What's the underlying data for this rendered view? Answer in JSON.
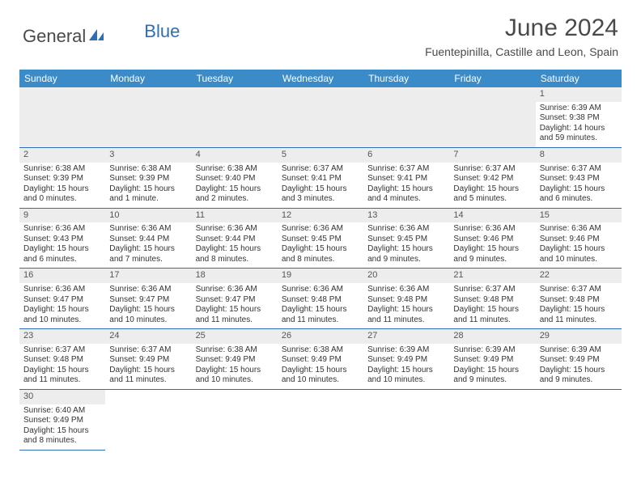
{
  "logo": {
    "general": "General",
    "blue": "Blue"
  },
  "title": "June 2024",
  "location": "Fuentepinilla, Castille and Leon, Spain",
  "colors": {
    "header_bg": "#3b8bc9",
    "accent": "#2d6fb5",
    "stripe": "#ededed",
    "text": "#333333"
  },
  "day_headers": [
    "Sunday",
    "Monday",
    "Tuesday",
    "Wednesday",
    "Thursday",
    "Friday",
    "Saturday"
  ],
  "weeks": [
    [
      null,
      null,
      null,
      null,
      null,
      null,
      {
        "n": "1",
        "sr": "Sunrise: 6:39 AM",
        "ss": "Sunset: 9:38 PM",
        "d1": "Daylight: 14 hours",
        "d2": "and 59 minutes."
      }
    ],
    [
      {
        "n": "2",
        "sr": "Sunrise: 6:38 AM",
        "ss": "Sunset: 9:39 PM",
        "d1": "Daylight: 15 hours",
        "d2": "and 0 minutes."
      },
      {
        "n": "3",
        "sr": "Sunrise: 6:38 AM",
        "ss": "Sunset: 9:39 PM",
        "d1": "Daylight: 15 hours",
        "d2": "and 1 minute."
      },
      {
        "n": "4",
        "sr": "Sunrise: 6:38 AM",
        "ss": "Sunset: 9:40 PM",
        "d1": "Daylight: 15 hours",
        "d2": "and 2 minutes."
      },
      {
        "n": "5",
        "sr": "Sunrise: 6:37 AM",
        "ss": "Sunset: 9:41 PM",
        "d1": "Daylight: 15 hours",
        "d2": "and 3 minutes."
      },
      {
        "n": "6",
        "sr": "Sunrise: 6:37 AM",
        "ss": "Sunset: 9:41 PM",
        "d1": "Daylight: 15 hours",
        "d2": "and 4 minutes."
      },
      {
        "n": "7",
        "sr": "Sunrise: 6:37 AM",
        "ss": "Sunset: 9:42 PM",
        "d1": "Daylight: 15 hours",
        "d2": "and 5 minutes."
      },
      {
        "n": "8",
        "sr": "Sunrise: 6:37 AM",
        "ss": "Sunset: 9:43 PM",
        "d1": "Daylight: 15 hours",
        "d2": "and 6 minutes."
      }
    ],
    [
      {
        "n": "9",
        "sr": "Sunrise: 6:36 AM",
        "ss": "Sunset: 9:43 PM",
        "d1": "Daylight: 15 hours",
        "d2": "and 6 minutes."
      },
      {
        "n": "10",
        "sr": "Sunrise: 6:36 AM",
        "ss": "Sunset: 9:44 PM",
        "d1": "Daylight: 15 hours",
        "d2": "and 7 minutes."
      },
      {
        "n": "11",
        "sr": "Sunrise: 6:36 AM",
        "ss": "Sunset: 9:44 PM",
        "d1": "Daylight: 15 hours",
        "d2": "and 8 minutes."
      },
      {
        "n": "12",
        "sr": "Sunrise: 6:36 AM",
        "ss": "Sunset: 9:45 PM",
        "d1": "Daylight: 15 hours",
        "d2": "and 8 minutes."
      },
      {
        "n": "13",
        "sr": "Sunrise: 6:36 AM",
        "ss": "Sunset: 9:45 PM",
        "d1": "Daylight: 15 hours",
        "d2": "and 9 minutes."
      },
      {
        "n": "14",
        "sr": "Sunrise: 6:36 AM",
        "ss": "Sunset: 9:46 PM",
        "d1": "Daylight: 15 hours",
        "d2": "and 9 minutes."
      },
      {
        "n": "15",
        "sr": "Sunrise: 6:36 AM",
        "ss": "Sunset: 9:46 PM",
        "d1": "Daylight: 15 hours",
        "d2": "and 10 minutes."
      }
    ],
    [
      {
        "n": "16",
        "sr": "Sunrise: 6:36 AM",
        "ss": "Sunset: 9:47 PM",
        "d1": "Daylight: 15 hours",
        "d2": "and 10 minutes."
      },
      {
        "n": "17",
        "sr": "Sunrise: 6:36 AM",
        "ss": "Sunset: 9:47 PM",
        "d1": "Daylight: 15 hours",
        "d2": "and 10 minutes."
      },
      {
        "n": "18",
        "sr": "Sunrise: 6:36 AM",
        "ss": "Sunset: 9:47 PM",
        "d1": "Daylight: 15 hours",
        "d2": "and 11 minutes."
      },
      {
        "n": "19",
        "sr": "Sunrise: 6:36 AM",
        "ss": "Sunset: 9:48 PM",
        "d1": "Daylight: 15 hours",
        "d2": "and 11 minutes."
      },
      {
        "n": "20",
        "sr": "Sunrise: 6:36 AM",
        "ss": "Sunset: 9:48 PM",
        "d1": "Daylight: 15 hours",
        "d2": "and 11 minutes."
      },
      {
        "n": "21",
        "sr": "Sunrise: 6:37 AM",
        "ss": "Sunset: 9:48 PM",
        "d1": "Daylight: 15 hours",
        "d2": "and 11 minutes."
      },
      {
        "n": "22",
        "sr": "Sunrise: 6:37 AM",
        "ss": "Sunset: 9:48 PM",
        "d1": "Daylight: 15 hours",
        "d2": "and 11 minutes."
      }
    ],
    [
      {
        "n": "23",
        "sr": "Sunrise: 6:37 AM",
        "ss": "Sunset: 9:48 PM",
        "d1": "Daylight: 15 hours",
        "d2": "and 11 minutes."
      },
      {
        "n": "24",
        "sr": "Sunrise: 6:37 AM",
        "ss": "Sunset: 9:49 PM",
        "d1": "Daylight: 15 hours",
        "d2": "and 11 minutes."
      },
      {
        "n": "25",
        "sr": "Sunrise: 6:38 AM",
        "ss": "Sunset: 9:49 PM",
        "d1": "Daylight: 15 hours",
        "d2": "and 10 minutes."
      },
      {
        "n": "26",
        "sr": "Sunrise: 6:38 AM",
        "ss": "Sunset: 9:49 PM",
        "d1": "Daylight: 15 hours",
        "d2": "and 10 minutes."
      },
      {
        "n": "27",
        "sr": "Sunrise: 6:39 AM",
        "ss": "Sunset: 9:49 PM",
        "d1": "Daylight: 15 hours",
        "d2": "and 10 minutes."
      },
      {
        "n": "28",
        "sr": "Sunrise: 6:39 AM",
        "ss": "Sunset: 9:49 PM",
        "d1": "Daylight: 15 hours",
        "d2": "and 9 minutes."
      },
      {
        "n": "29",
        "sr": "Sunrise: 6:39 AM",
        "ss": "Sunset: 9:49 PM",
        "d1": "Daylight: 15 hours",
        "d2": "and 9 minutes."
      }
    ],
    [
      {
        "n": "30",
        "sr": "Sunrise: 6:40 AM",
        "ss": "Sunset: 9:49 PM",
        "d1": "Daylight: 15 hours",
        "d2": "and 8 minutes."
      },
      null,
      null,
      null,
      null,
      null,
      null
    ]
  ]
}
